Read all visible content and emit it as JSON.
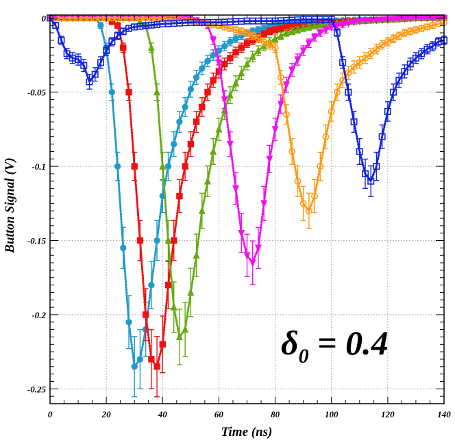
{
  "chart_data": {
    "type": "line",
    "title": "",
    "xlabel": "Time (ns)",
    "ylabel": "Button Signal (V)",
    "xlim": [
      0,
      140
    ],
    "ylim": [
      -0.26,
      0.002
    ],
    "xticks": [
      0,
      20,
      40,
      60,
      80,
      100,
      120,
      140
    ],
    "yticks": [
      0,
      -0.05,
      -0.1,
      -0.15,
      -0.2,
      -0.25
    ],
    "xtick_labels": [
      "0",
      "20",
      "40",
      "60",
      "80",
      "100",
      "120",
      "140"
    ],
    "ytick_labels": [
      "0",
      "-0.05",
      "-0.1",
      "-0.15",
      "-0.2",
      "-0.25"
    ],
    "grid": true,
    "legend": false,
    "annotation": {
      "symbol": "δ",
      "subscript": "0",
      "text": " = 0.4"
    },
    "series": [
      {
        "color": "#2299cc",
        "marker": "circle-filled",
        "x": [
          0,
          10,
          16,
          18,
          20,
          22,
          24,
          26,
          28,
          30,
          32,
          34,
          36,
          38,
          40,
          42,
          44,
          46,
          48,
          50,
          52,
          54,
          56,
          58,
          60,
          62,
          64,
          66,
          68,
          70,
          72,
          74,
          76,
          78,
          80,
          85,
          90,
          100,
          110,
          120,
          130,
          140
        ],
        "y": [
          0,
          0,
          0,
          -0.005,
          -0.02,
          -0.05,
          -0.1,
          -0.155,
          -0.205,
          -0.235,
          -0.23,
          -0.21,
          -0.18,
          -0.15,
          -0.12,
          -0.1,
          -0.085,
          -0.07,
          -0.06,
          -0.048,
          -0.04,
          -0.034,
          -0.029,
          -0.025,
          -0.022,
          -0.019,
          -0.016,
          -0.014,
          -0.012,
          -0.01,
          -0.009,
          -0.008,
          -0.007,
          -0.006,
          -0.005,
          -0.004,
          -0.003,
          -0.002,
          -0.001,
          -0.001,
          0,
          0
        ]
      },
      {
        "color": "#ee1111",
        "marker": "square-filled",
        "x": [
          0,
          20,
          24,
          26,
          28,
          30,
          32,
          34,
          36,
          38,
          40,
          42,
          44,
          46,
          48,
          50,
          52,
          54,
          56,
          58,
          60,
          62,
          64,
          66,
          68,
          70,
          72,
          74,
          76,
          78,
          80,
          85,
          90,
          100,
          110,
          120,
          130,
          140
        ],
        "y": [
          0,
          0,
          -0.005,
          -0.02,
          -0.05,
          -0.1,
          -0.15,
          -0.2,
          -0.23,
          -0.235,
          -0.22,
          -0.18,
          -0.15,
          -0.12,
          -0.1,
          -0.085,
          -0.07,
          -0.06,
          -0.05,
          -0.042,
          -0.036,
          -0.031,
          -0.027,
          -0.023,
          -0.02,
          -0.017,
          -0.015,
          -0.013,
          -0.011,
          -0.009,
          -0.008,
          -0.006,
          -0.005,
          -0.003,
          -0.002,
          -0.001,
          0,
          0
        ]
      },
      {
        "color": "#66aa11",
        "marker": "triangle-up-filled",
        "x": [
          0,
          30,
          34,
          36,
          38,
          40,
          42,
          44,
          46,
          48,
          50,
          52,
          54,
          56,
          58,
          60,
          62,
          64,
          66,
          68,
          70,
          72,
          74,
          76,
          78,
          80,
          82,
          84,
          86,
          88,
          90,
          95,
          100,
          110,
          120,
          130,
          140
        ],
        "y": [
          0,
          0,
          -0.005,
          -0.02,
          -0.05,
          -0.1,
          -0.15,
          -0.195,
          -0.215,
          -0.21,
          -0.185,
          -0.16,
          -0.13,
          -0.11,
          -0.09,
          -0.075,
          -0.062,
          -0.052,
          -0.044,
          -0.037,
          -0.031,
          -0.026,
          -0.022,
          -0.019,
          -0.016,
          -0.014,
          -0.012,
          -0.01,
          -0.009,
          -0.008,
          -0.007,
          -0.005,
          -0.004,
          -0.002,
          -0.001,
          0,
          0
        ]
      },
      {
        "color": "#ee11ee",
        "marker": "triangle-down-filled",
        "x": [
          0,
          50,
          56,
          58,
          60,
          62,
          64,
          66,
          68,
          70,
          72,
          74,
          76,
          78,
          80,
          82,
          84,
          86,
          88,
          90,
          92,
          94,
          96,
          98,
          100,
          105,
          110,
          120,
          130,
          140
        ],
        "y": [
          0,
          0,
          -0.005,
          -0.015,
          -0.03,
          -0.055,
          -0.085,
          -0.115,
          -0.145,
          -0.16,
          -0.165,
          -0.155,
          -0.125,
          -0.095,
          -0.075,
          -0.058,
          -0.045,
          -0.035,
          -0.028,
          -0.022,
          -0.017,
          -0.013,
          -0.01,
          -0.008,
          -0.006,
          -0.004,
          -0.002,
          -0.001,
          0,
          0
        ]
      },
      {
        "color": "#ff9911",
        "marker": "circle-open",
        "x": [
          0,
          20,
          30,
          40,
          50,
          60,
          70,
          80,
          82,
          84,
          86,
          88,
          90,
          92,
          94,
          96,
          98,
          100,
          102,
          104,
          106,
          108,
          110,
          112,
          114,
          116,
          118,
          120,
          122,
          124,
          126,
          128,
          130,
          132,
          134,
          136,
          138,
          140
        ],
        "y": [
          0,
          0,
          0,
          0,
          -0.002,
          -0.005,
          -0.01,
          -0.02,
          -0.04,
          -0.065,
          -0.09,
          -0.11,
          -0.125,
          -0.13,
          -0.12,
          -0.1,
          -0.08,
          -0.063,
          -0.05,
          -0.042,
          -0.037,
          -0.033,
          -0.03,
          -0.027,
          -0.024,
          -0.021,
          -0.018,
          -0.016,
          -0.014,
          -0.012,
          -0.01,
          -0.009,
          -0.008,
          -0.007,
          -0.006,
          -0.005,
          -0.004,
          -0.003
        ]
      },
      {
        "color": "#1122dd",
        "marker": "square-open",
        "x": [
          0,
          2,
          4,
          6,
          8,
          10,
          12,
          14,
          16,
          18,
          20,
          22,
          24,
          26,
          28,
          30,
          35,
          40,
          50,
          60,
          70,
          80,
          90,
          100,
          102,
          104,
          106,
          108,
          110,
          112,
          114,
          116,
          118,
          120,
          122,
          124,
          126,
          128,
          130,
          132,
          134,
          136,
          138,
          140
        ],
        "y": [
          0,
          -0.005,
          -0.015,
          -0.024,
          -0.027,
          -0.028,
          -0.032,
          -0.043,
          -0.038,
          -0.03,
          -0.022,
          -0.016,
          -0.012,
          -0.009,
          -0.007,
          -0.006,
          -0.005,
          -0.004,
          -0.003,
          -0.003,
          -0.002,
          -0.002,
          -0.001,
          -0.001,
          -0.01,
          -0.03,
          -0.05,
          -0.07,
          -0.09,
          -0.105,
          -0.11,
          -0.1,
          -0.08,
          -0.063,
          -0.05,
          -0.042,
          -0.036,
          -0.031,
          -0.027,
          -0.024,
          -0.021,
          -0.019,
          -0.016,
          -0.015
        ]
      }
    ]
  }
}
